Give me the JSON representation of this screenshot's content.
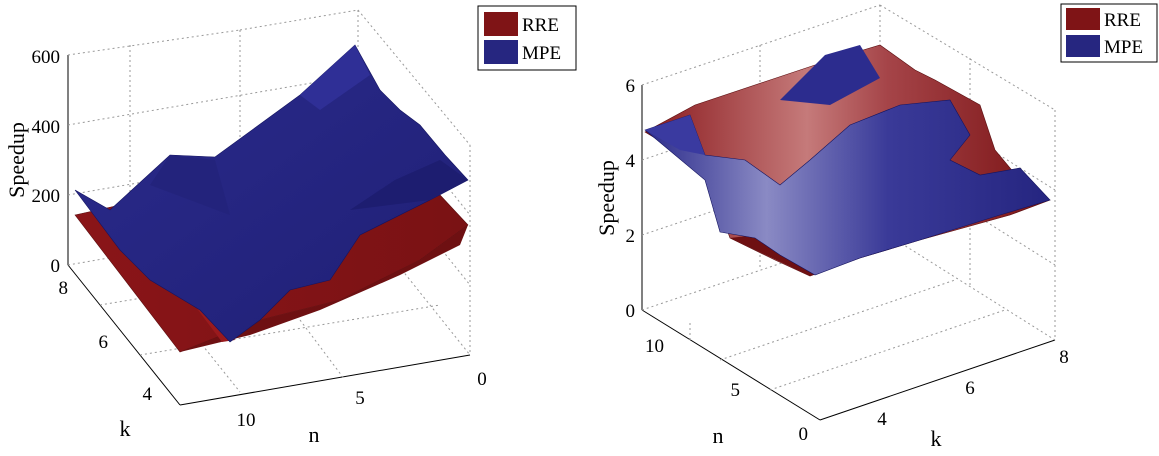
{
  "chart_data": [
    {
      "type": "surface",
      "zlabel": "Speedup",
      "xlabel": "n",
      "ylabel": "k",
      "n_ticks": [
        "0",
        "5",
        "10"
      ],
      "k_ticks": [
        "4",
        "6",
        "8"
      ],
      "z_ticks": [
        "0",
        "200",
        "400",
        "600"
      ],
      "zlim": [
        0,
        600
      ],
      "legend_position": "top-right",
      "grid": true,
      "series": [
        {
          "name": "RRE",
          "color": "#7f1416"
        },
        {
          "name": "MPE",
          "color": "#262680"
        }
      ]
    },
    {
      "type": "surface",
      "zlabel": "Speedup",
      "xlabel": "n",
      "ylabel": "k",
      "n_ticks": [
        "0",
        "5",
        "10"
      ],
      "k_ticks": [
        "4",
        "6",
        "8"
      ],
      "z_ticks": [
        "0",
        "2",
        "4",
        "6"
      ],
      "zlim": [
        0,
        6
      ],
      "legend_position": "top-right",
      "grid": true,
      "series": [
        {
          "name": "RRE",
          "color": "#7f1416"
        },
        {
          "name": "MPE",
          "color": "#262680"
        }
      ]
    }
  ]
}
